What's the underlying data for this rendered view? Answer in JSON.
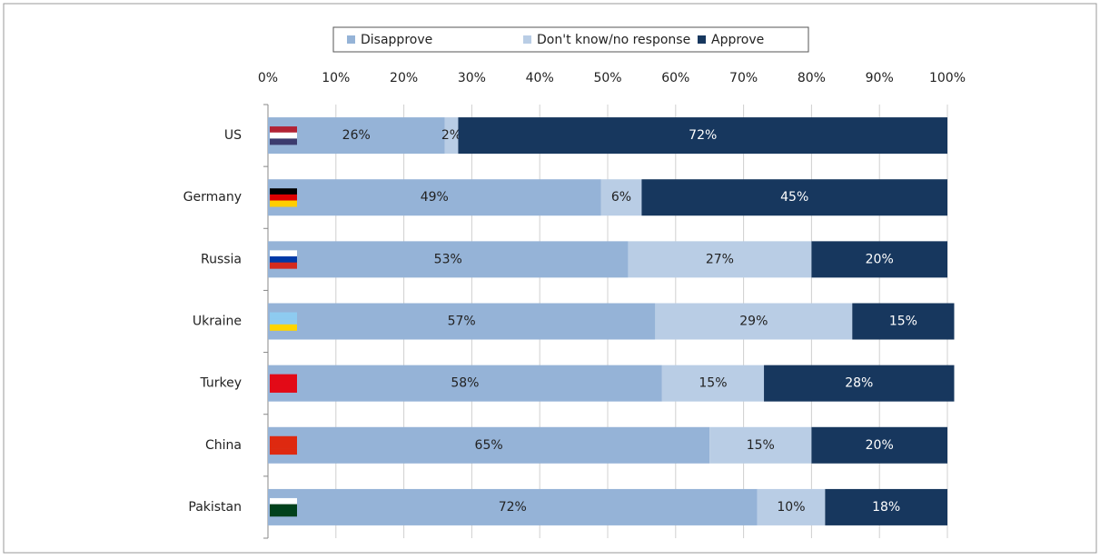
{
  "chart_data": {
    "type": "stacked-bar",
    "categories": [
      "US",
      "Germany",
      "Russia",
      "Ukraine",
      "Turkey",
      "China",
      "Pakistan"
    ],
    "series": [
      {
        "name": "Disapprove",
        "color": "#95b3d7",
        "values": [
          26,
          49,
          53,
          57,
          58,
          65,
          72
        ],
        "value_labels": [
          "26%",
          "49%",
          "53%",
          "57%",
          "58%",
          "65%",
          "72%"
        ]
      },
      {
        "name": "Don't know/no response",
        "color": "#b9cde5",
        "values": [
          2,
          6,
          27,
          29,
          15,
          15,
          10
        ],
        "value_labels": [
          "2%",
          "6%",
          "27%",
          "29%",
          "15%",
          "15%",
          "10%"
        ]
      },
      {
        "name": "Approve",
        "color": "#17375e",
        "values": [
          72,
          45,
          20,
          15,
          28,
          20,
          18
        ],
        "value_labels": [
          "72%",
          "45%",
          "20%",
          "15%",
          "28%",
          "20%",
          "18%"
        ]
      }
    ],
    "xlim": [
      0,
      100
    ],
    "xticks": [
      {
        "value": 0,
        "label": "0%"
      },
      {
        "value": 10,
        "label": "10%"
      },
      {
        "value": 20,
        "label": "20%"
      },
      {
        "value": 30,
        "label": "30%"
      },
      {
        "value": 40,
        "label": "40%"
      },
      {
        "value": 50,
        "label": "50%"
      },
      {
        "value": 60,
        "label": "60%"
      },
      {
        "value": 70,
        "label": "70%"
      },
      {
        "value": 80,
        "label": "80%"
      },
      {
        "value": 90,
        "label": "90%"
      },
      {
        "value": 100,
        "label": "100%"
      }
    ],
    "grid": true,
    "legend": "top"
  }
}
